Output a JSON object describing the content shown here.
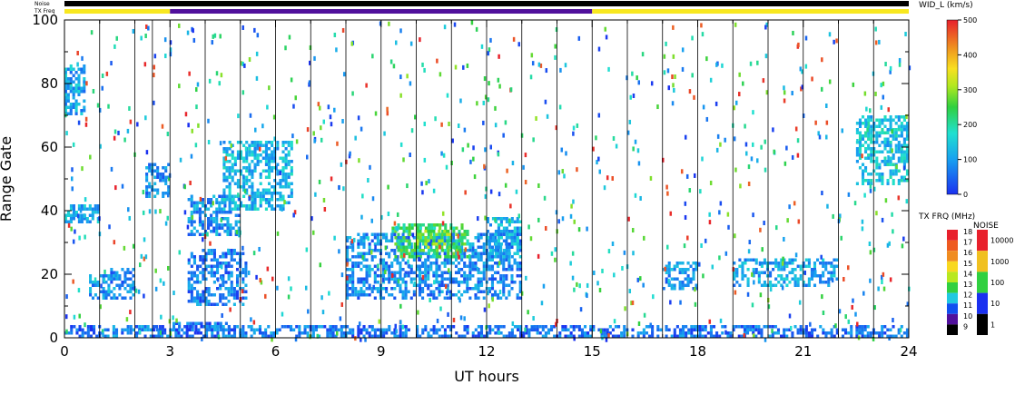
{
  "chart_data": {
    "type": "heatmap",
    "xlabel": "UT hours",
    "ylabel": "Range Gate",
    "x_range": [
      0,
      24
    ],
    "y_range": [
      0,
      100
    ],
    "x_ticks": [
      "0",
      "3",
      "6",
      "9",
      "12",
      "15",
      "18",
      "21",
      "24"
    ],
    "y_ticks": [
      "0",
      "20",
      "40",
      "60",
      "80",
      "100"
    ],
    "strip_labels": {
      "noise": "Noise",
      "txfreq": "TX Freq"
    },
    "txfreq_strip": [
      {
        "from": 0,
        "to": 3,
        "value_mhz": 14.0
      },
      {
        "from": 3,
        "to": 15,
        "value_mhz": 10.0
      },
      {
        "from": 15,
        "to": 24,
        "value_mhz": 14.0
      }
    ],
    "scan_boundaries_ut": [
      1,
      2,
      2.5,
      3,
      4,
      5,
      6,
      7,
      8,
      9,
      10,
      11,
      12,
      13,
      14,
      15,
      16,
      17,
      18,
      19,
      20,
      21,
      22,
      23
    ],
    "blobs": [
      {
        "x": [
          0.0,
          1.2
        ],
        "y": [
          0,
          4
        ],
        "w": 40
      },
      {
        "x": [
          1.2,
          2.5
        ],
        "y": [
          0,
          4
        ],
        "w": 80
      },
      {
        "x": [
          2.5,
          4.0
        ],
        "y": [
          0,
          4
        ],
        "w": 50
      },
      {
        "x": [
          2.6,
          4.8
        ],
        "y": [
          2,
          5
        ],
        "w": 60
      },
      {
        "x": [
          4.0,
          8.0
        ],
        "y": [
          0,
          4
        ],
        "w": 70
      },
      {
        "x": [
          8.0,
          15.0
        ],
        "y": [
          0,
          4
        ],
        "w": 60
      },
      {
        "x": [
          15.0,
          24.0
        ],
        "y": [
          0,
          4
        ],
        "w": 60
      },
      {
        "x": [
          8.0,
          13.0
        ],
        "y": [
          12,
          33
        ],
        "w": 80
      },
      {
        "x": [
          9.3,
          11.5
        ],
        "y": [
          25,
          36
        ],
        "w": 230
      },
      {
        "x": [
          10.0,
          11.0
        ],
        "y": [
          28,
          34
        ],
        "w": 280
      },
      {
        "x": [
          3.5,
          5.2
        ],
        "y": [
          10,
          28
        ],
        "w": 70
      },
      {
        "x": [
          0.7,
          1.3
        ],
        "y": [
          12,
          20
        ],
        "w": 90
      },
      {
        "x": [
          1.3,
          2.0
        ],
        "y": [
          12,
          22
        ],
        "w": 80
      },
      {
        "x": [
          0.0,
          0.6
        ],
        "y": [
          70,
          86
        ],
        "w": 110
      },
      {
        "x": [
          2.3,
          3.0
        ],
        "y": [
          44,
          55
        ],
        "w": 80
      },
      {
        "x": [
          3.5,
          5.0
        ],
        "y": [
          32,
          45
        ],
        "w": 90
      },
      {
        "x": [
          4.5,
          6.5
        ],
        "y": [
          40,
          62
        ],
        "w": 130
      },
      {
        "x": [
          0.0,
          1.0
        ],
        "y": [
          36,
          42
        ],
        "w": 120
      },
      {
        "x": [
          17.0,
          18.0
        ],
        "y": [
          15,
          24
        ],
        "w": 90
      },
      {
        "x": [
          19.0,
          22.0
        ],
        "y": [
          16,
          25
        ],
        "w": 110
      },
      {
        "x": [
          22.5,
          24.0
        ],
        "y": [
          48,
          70
        ],
        "w": 140
      },
      {
        "x": [
          12.0,
          13.0
        ],
        "y": [
          25,
          38
        ],
        "w": 120
      }
    ]
  },
  "colorbar_width": {
    "title": "WID_L (km/s)",
    "ticks": [
      "500",
      "400",
      "300",
      "200",
      "100",
      "0"
    ],
    "min": 0,
    "max": 500
  },
  "colorbar_txfreq": {
    "title": "TX FRQ (MHz)",
    "labels": [
      "18",
      "17",
      "16",
      "15",
      "14",
      "13",
      "12",
      "11",
      "10",
      "9"
    ],
    "colors": [
      "#e8202c",
      "#ee5a20",
      "#f08c20",
      "#f8d820",
      "#b8e820",
      "#30d040",
      "#20c8e0",
      "#1050f0",
      "#50109c",
      "#000000"
    ]
  },
  "colorbar_noise": {
    "title": "NOISE",
    "labels": [
      "10000",
      "1000",
      "100",
      "10",
      "1"
    ],
    "colors": [
      "#e8202c",
      "#f0c020",
      "#30d040",
      "#1a30f0",
      "#000000"
    ]
  }
}
